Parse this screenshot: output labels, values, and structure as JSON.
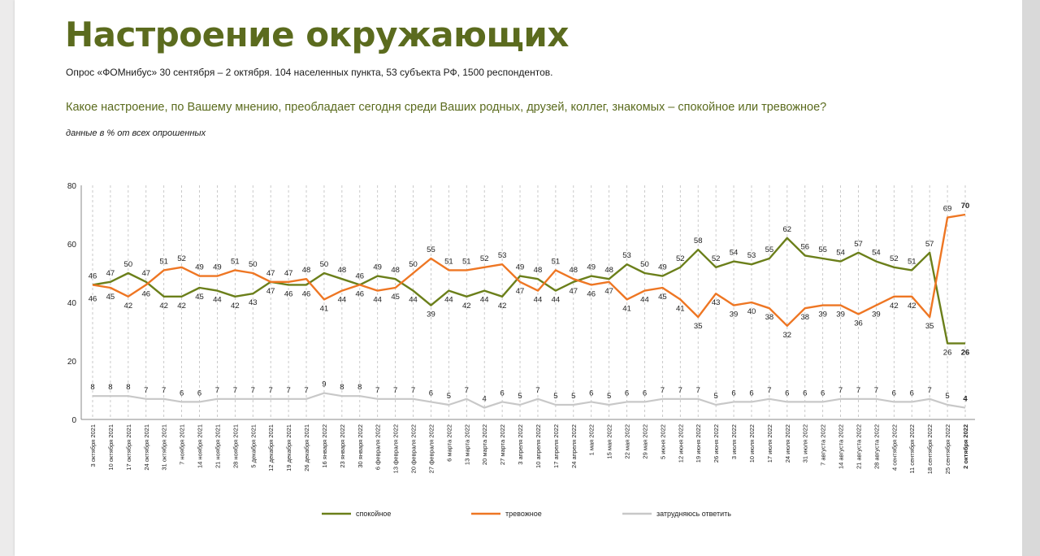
{
  "header": {
    "title": "Настроение окружающих",
    "subtitle": "Опрос «ФОМнибус» 30 сентября – 2 октября. 104 населенных пункта, 53 субъекта РФ, 1500 респондентов.",
    "question": "Какое настроение, по Вашему мнению, преобладает сегодня среди Ваших родных, друзей, коллег, знакомых – спокойное или тревожное?",
    "note": "данные в % от всех опрошенных"
  },
  "colors": {
    "calm": "#6b7f1a",
    "anxious": "#ee7623",
    "undecided": "#c8c8c8",
    "grid": "#bdbdbd"
  },
  "chart_data": {
    "type": "line",
    "ylim": [
      0,
      80
    ],
    "yticks": [
      0,
      20,
      40,
      60,
      80
    ],
    "grid": "vertical dashed",
    "legend_position": "bottom",
    "x": [
      "3 октября 2021",
      "10 октября 2021",
      "17 октября 2021",
      "24 октября 2021",
      "31 октября 2021",
      "7 ноября 2021",
      "14 ноября 2021",
      "21 ноября 2021",
      "28 ноября 2021",
      "5 декабря 2021",
      "12 декабря 2021",
      "19 декабря 2021",
      "26 декабря 2021",
      "16 января 2022",
      "23 января 2022",
      "30 января 2022",
      "6 февраля 2022",
      "13 февраля 2022",
      "20 февраля 2022",
      "27 февраля 2022",
      "6 марта 2022",
      "13 марта 2022",
      "20 марта 2022",
      "27 марта 2022",
      "3 апреля 2022",
      "10 апреля 2022",
      "17 апреля 2022",
      "24 апреля 2022",
      "1 мая 2022",
      "15 мая 2022",
      "22 мая 2022",
      "29 мая 2022",
      "5 июня 2022",
      "12 июня 2022",
      "19 июня 2022",
      "26 июня 2022",
      "3 июля 2022",
      "10 июля 2022",
      "17 июля 2022",
      "24 июля 2022",
      "31 июля 2022",
      "7 августа 2022",
      "14 августа 2022",
      "21 августа 2022",
      "28 августа 2022",
      "4 сентября 2022",
      "11 сентября 2022",
      "18 сентября 2022",
      "25 сентября 2022",
      "2 октября 2022"
    ],
    "series": [
      {
        "name": "спокойное",
        "values": [
          46,
          47,
          50,
          47,
          42,
          42,
          45,
          44,
          42,
          43,
          47,
          46,
          46,
          50,
          48,
          46,
          49,
          48,
          44,
          39,
          44,
          42,
          44,
          42,
          49,
          48,
          44,
          47,
          49,
          48,
          53,
          50,
          49,
          52,
          58,
          52,
          54,
          53,
          55,
          62,
          56,
          55,
          54,
          57,
          54,
          52,
          51,
          57,
          26,
          26
        ]
      },
      {
        "name": "тревожное",
        "values": [
          46,
          45,
          42,
          46,
          51,
          52,
          49,
          49,
          51,
          50,
          47,
          47,
          48,
          41,
          44,
          46,
          44,
          45,
          50,
          55,
          51,
          51,
          52,
          53,
          47,
          44,
          51,
          48,
          46,
          47,
          41,
          44,
          45,
          41,
          35,
          43,
          39,
          40,
          38,
          32,
          38,
          39,
          39,
          36,
          39,
          42,
          42,
          35,
          69,
          70
        ]
      },
      {
        "name": "затрудняюсь ответить",
        "values": [
          8,
          8,
          8,
          7,
          7,
          6,
          6,
          7,
          7,
          7,
          7,
          7,
          7,
          9,
          8,
          8,
          7,
          7,
          7,
          6,
          5,
          7,
          4,
          6,
          5,
          7,
          5,
          5,
          6,
          5,
          6,
          6,
          7,
          7,
          7,
          5,
          6,
          6,
          7,
          6,
          6,
          6,
          7,
          7,
          7,
          6,
          6,
          7,
          5,
          4
        ]
      }
    ]
  }
}
